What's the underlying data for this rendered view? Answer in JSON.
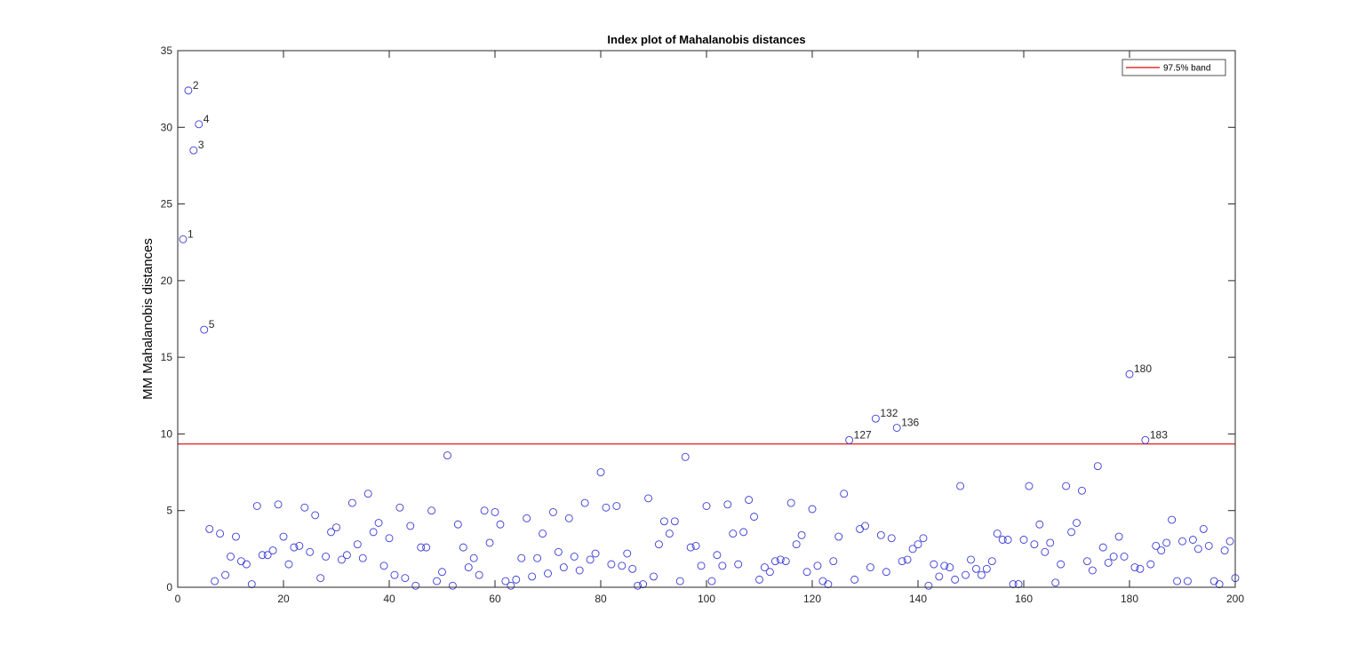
{
  "chart_data": {
    "type": "scatter",
    "title": "Index plot of Mahalanobis distances",
    "xlabel": "",
    "ylabel": "MM Mahalanobis distances",
    "xlim": [
      0,
      200
    ],
    "ylim": [
      0,
      35
    ],
    "xticks": [
      0,
      20,
      40,
      60,
      80,
      100,
      120,
      140,
      160,
      180,
      200
    ],
    "yticks": [
      0,
      5,
      10,
      15,
      20,
      25,
      30,
      35
    ],
    "grid": false,
    "legend": {
      "position": "top-right",
      "entries": [
        {
          "label": "97.5% band",
          "color": "#e03030"
        }
      ]
    },
    "band": {
      "name": "97.5% band",
      "y": 9.35,
      "color": "#e03030"
    },
    "marker_color": "#3b3bd8",
    "series": [
      {
        "x": [
          1,
          2,
          3,
          4,
          5,
          6,
          7,
          8,
          9,
          10,
          11,
          12,
          13,
          14,
          15,
          16,
          17,
          18,
          19,
          20,
          21,
          22,
          23,
          24,
          25,
          26,
          27,
          28,
          29,
          30,
          31,
          32,
          33,
          34,
          35,
          36,
          37,
          38,
          39,
          40,
          41,
          42,
          43,
          44,
          45,
          46,
          47,
          48,
          49,
          50,
          51,
          52,
          53,
          54,
          55,
          56,
          57,
          58,
          59,
          60,
          61,
          62,
          63,
          64,
          65,
          66,
          67,
          68,
          69,
          70,
          71,
          72,
          73,
          74,
          75,
          76,
          77,
          78,
          79,
          80,
          81,
          82,
          83,
          84,
          85,
          86,
          87,
          88,
          89,
          90,
          91,
          92,
          93,
          94,
          95,
          96,
          97,
          98,
          99,
          100,
          101,
          102,
          103,
          104,
          105,
          106,
          107,
          108,
          109,
          110,
          111,
          112,
          113,
          114,
          115,
          116,
          117,
          118,
          119,
          120,
          121,
          122,
          123,
          124,
          125,
          126,
          127,
          128,
          129,
          130,
          131,
          132,
          133,
          134,
          135,
          136,
          137,
          138,
          139,
          140,
          141,
          142,
          143,
          144,
          145,
          146,
          147,
          148,
          149,
          150,
          151,
          152,
          153,
          154,
          155,
          156,
          157,
          158,
          159,
          160,
          161,
          162,
          163,
          164,
          165,
          166,
          167,
          168,
          169,
          170,
          171,
          172,
          173,
          174,
          175,
          176,
          177,
          178,
          179,
          180,
          181,
          182,
          183,
          184,
          185,
          186,
          187,
          188,
          189,
          190,
          191,
          192,
          193,
          194,
          195,
          196,
          197,
          198,
          199,
          200
        ],
        "y": [
          22.7,
          32.4,
          28.5,
          30.2,
          16.8,
          3.8,
          0.4,
          3.5,
          0.8,
          2.0,
          3.3,
          1.7,
          1.5,
          0.2,
          5.3,
          2.1,
          2.1,
          2.4,
          5.4,
          3.3,
          1.5,
          2.6,
          2.7,
          5.2,
          2.3,
          4.7,
          0.6,
          2.0,
          3.6,
          3.9,
          1.8,
          2.1,
          5.5,
          2.8,
          1.9,
          6.1,
          3.6,
          4.2,
          1.4,
          3.2,
          0.8,
          5.2,
          0.6,
          4.0,
          0.1,
          2.6,
          2.6,
          5.0,
          0.4,
          1.0,
          8.6,
          0.1,
          4.1,
          2.6,
          1.3,
          1.9,
          0.8,
          5.0,
          2.9,
          4.9,
          4.1,
          0.4,
          0.1,
          0.5,
          1.9,
          4.5,
          0.7,
          1.9,
          3.5,
          0.9,
          4.9,
          2.3,
          1.3,
          4.5,
          2.0,
          1.1,
          5.5,
          1.8,
          2.2,
          7.5,
          5.2,
          1.5,
          5.3,
          1.4,
          2.2,
          1.2,
          0.1,
          0.2,
          5.8,
          0.7,
          2.8,
          4.3,
          3.5,
          4.3,
          0.4,
          8.5,
          2.6,
          2.7,
          1.4,
          5.3,
          0.4,
          2.1,
          1.4,
          5.4,
          3.5,
          1.5,
          3.6,
          5.7,
          4.6,
          0.5,
          1.3,
          1.0,
          1.7,
          1.8,
          1.7,
          5.5,
          2.8,
          3.4,
          1.0,
          5.1,
          1.4,
          0.4,
          0.2,
          1.7,
          3.3,
          6.1,
          9.6,
          0.5,
          3.8,
          4.0,
          1.3,
          11.0,
          3.4,
          1.0,
          3.2,
          10.4,
          1.7,
          1.8,
          2.5,
          2.8,
          3.2,
          0.1,
          1.5,
          0.7,
          1.4,
          1.3,
          0.5,
          6.6,
          0.8,
          1.8,
          1.2,
          0.8,
          1.2,
          1.7,
          3.5,
          3.1,
          3.1,
          0.2,
          0.2,
          3.1,
          6.6,
          2.8,
          4.1,
          2.3,
          2.9,
          0.3,
          1.5,
          6.6,
          3.6,
          4.2,
          6.3,
          1.7,
          1.1,
          7.9,
          2.6,
          1.6,
          2.0,
          3.3,
          2.0,
          13.9,
          1.3,
          1.2,
          9.6,
          1.5,
          2.7,
          2.4,
          2.9,
          4.4,
          0.4,
          3.0,
          0.4,
          3.1,
          2.5,
          3.8,
          2.7,
          0.4,
          0.2,
          2.4,
          3.0,
          0.6
        ]
      }
    ],
    "annotations": [
      {
        "index": 1,
        "text": "1"
      },
      {
        "index": 2,
        "text": "2"
      },
      {
        "index": 3,
        "text": "3"
      },
      {
        "index": 4,
        "text": "4"
      },
      {
        "index": 5,
        "text": "5"
      },
      {
        "index": 127,
        "text": "127"
      },
      {
        "index": 132,
        "text": "132"
      },
      {
        "index": 136,
        "text": "136"
      },
      {
        "index": 180,
        "text": "180"
      },
      {
        "index": 183,
        "text": "183"
      }
    ]
  }
}
